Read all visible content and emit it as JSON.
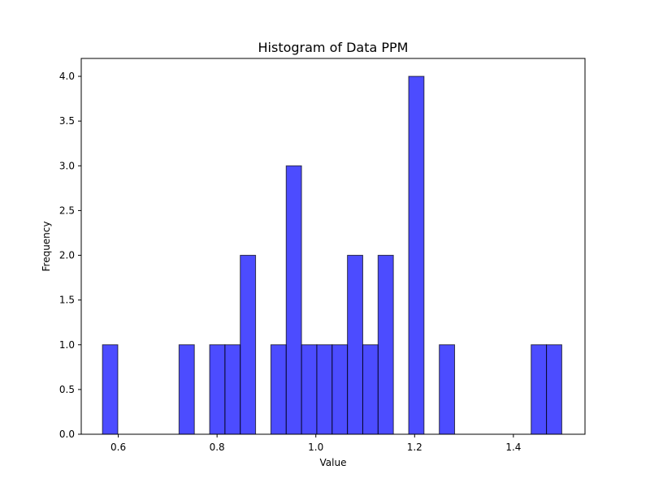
{
  "chart_data": {
    "type": "bar",
    "title": "Histogram of Data PPM",
    "xlabel": "Value",
    "ylabel": "Frequency",
    "xlim": [
      0.525,
      1.545
    ],
    "ylim": [
      0,
      4.2
    ],
    "xticks": [
      0.6,
      0.8,
      1.0,
      1.2,
      1.4
    ],
    "xtick_labels": [
      "0.6",
      "0.8",
      "1.0",
      "1.2",
      "1.4"
    ],
    "yticks": [
      0,
      0.5,
      1,
      1.5,
      2,
      2.5,
      3,
      3.5,
      4
    ],
    "ytick_labels": [
      "0.0",
      "0.5",
      "1.0",
      "1.5",
      "2.0",
      "2.5",
      "3.0",
      "3.5",
      "4.0"
    ],
    "bin_edges": [
      0.568,
      0.599,
      0.63,
      0.661,
      0.692,
      0.723,
      0.754,
      0.785,
      0.816,
      0.847,
      0.878,
      0.909,
      0.94,
      0.971,
      1.002,
      1.033,
      1.064,
      1.095,
      1.126,
      1.157,
      1.188,
      1.219,
      1.25,
      1.281,
      1.312,
      1.343,
      1.374,
      1.405,
      1.436,
      1.467,
      1.498
    ],
    "counts": [
      1,
      0,
      0,
      0,
      0,
      1,
      0,
      1,
      1,
      2,
      0,
      1,
      3,
      1,
      1,
      1,
      2,
      1,
      2,
      0,
      4,
      0,
      1,
      0,
      0,
      0,
      0,
      0,
      1,
      1
    ],
    "bar_color": "#0000ff",
    "bar_opacity": 0.7,
    "edge_color": "#000000",
    "grid": false
  }
}
